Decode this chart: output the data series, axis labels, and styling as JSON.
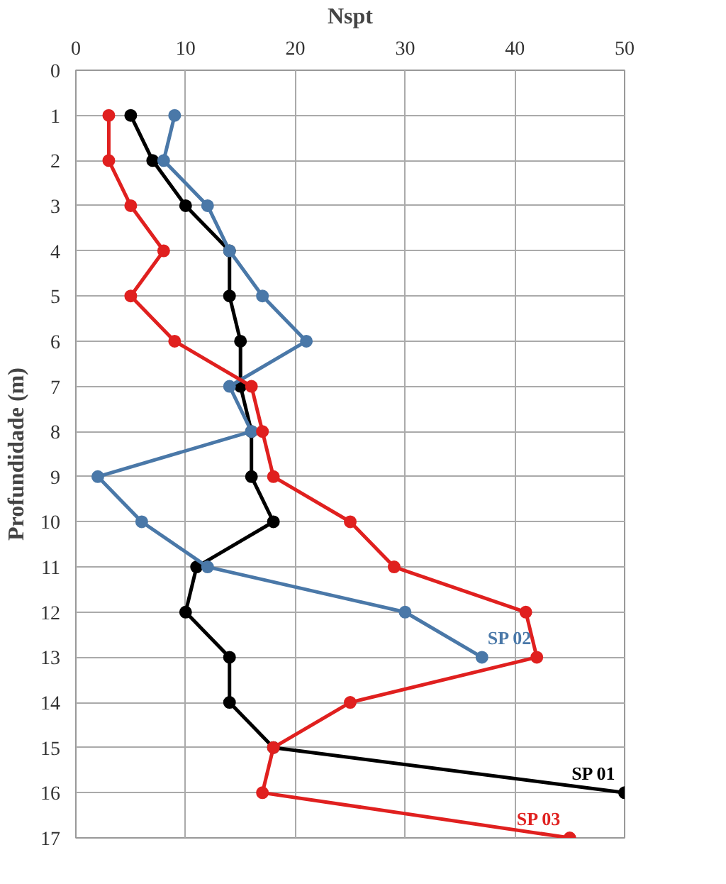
{
  "chart_data": {
    "type": "line",
    "xlabel": "Nspt",
    "ylabel": "Profundidade (m)",
    "xlim": [
      0,
      50
    ],
    "xticks": [
      0,
      10,
      20,
      30,
      40,
      50
    ],
    "ylim": [
      17,
      0
    ],
    "yticks": [
      0,
      1,
      2,
      3,
      4,
      5,
      6,
      7,
      8,
      9,
      10,
      11,
      12,
      13,
      14,
      15,
      16,
      17
    ],
    "grid": true,
    "marker": "circle",
    "line_style": "solid",
    "series": [
      {
        "name": "SP 01",
        "color": "#000000",
        "x": [
          5,
          7,
          10,
          14,
          14,
          15,
          15,
          16,
          16,
          18,
          11,
          10,
          14,
          14,
          18,
          50
        ],
        "values": [
          1,
          2,
          3,
          4,
          5,
          6,
          7,
          8,
          9,
          10,
          11,
          12,
          13,
          14,
          15,
          16
        ]
      },
      {
        "name": "SP 02",
        "color": "#4a78a8",
        "x": [
          9,
          8,
          12,
          14,
          17,
          21,
          14,
          16,
          2,
          6,
          12,
          30,
          37
        ],
        "values": [
          1,
          2,
          3,
          4,
          5,
          6,
          7,
          8,
          9,
          10,
          11,
          12,
          13
        ]
      },
      {
        "name": "SP 03",
        "color": "#e0201f",
        "x": [
          3,
          3,
          5,
          8,
          5,
          9,
          16,
          17,
          18,
          25,
          29,
          41,
          42,
          25,
          18,
          17,
          45
        ],
        "values": [
          1,
          2,
          3,
          4,
          5,
          6,
          7,
          8,
          9,
          10,
          11,
          12,
          13,
          14,
          15,
          16,
          17
        ]
      }
    ]
  }
}
